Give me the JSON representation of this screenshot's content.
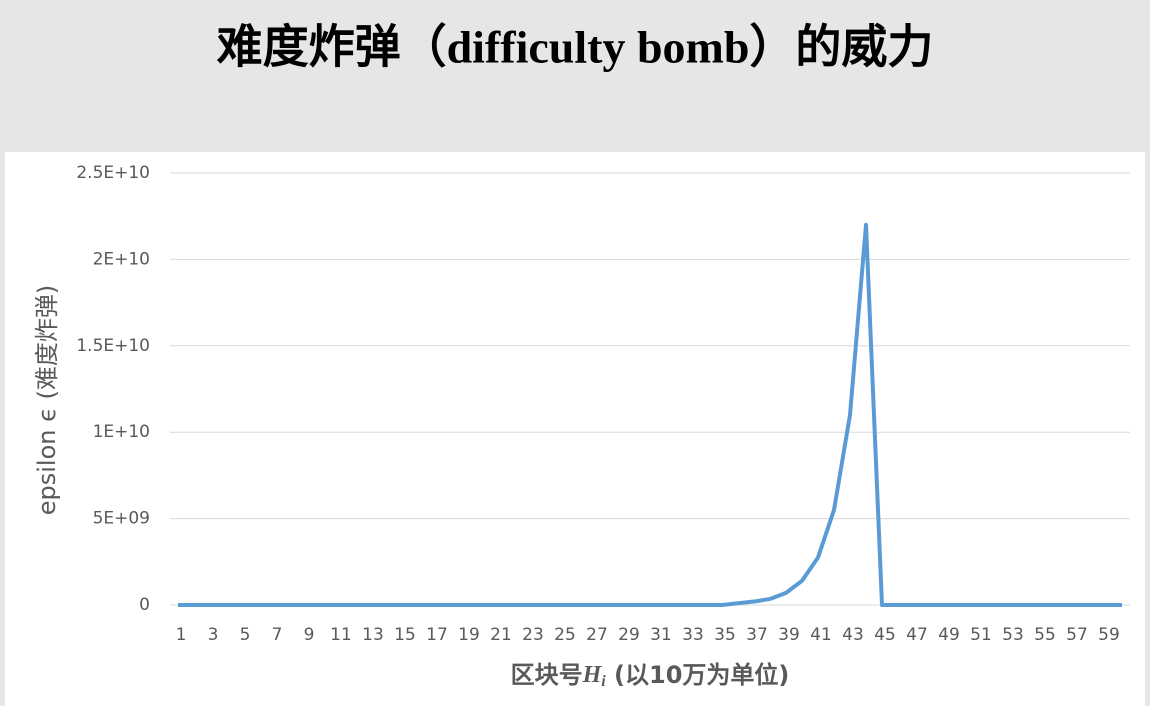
{
  "chart_data": {
    "type": "line",
    "title": "难度炸弹（difficulty bomb）的威力",
    "y_label": "epsilon ϵ (难度炸弹)",
    "x_label": {
      "prefix": "区块号",
      "var": "H",
      "sub": "i",
      "suffix": " (以10万为单位)"
    },
    "categories": [
      1,
      null,
      3,
      null,
      5,
      null,
      7,
      null,
      9,
      null,
      11,
      null,
      13,
      null,
      15,
      null,
      17,
      null,
      19,
      null,
      21,
      null,
      23,
      null,
      25,
      null,
      27,
      null,
      29,
      null,
      31,
      null,
      33,
      null,
      35,
      null,
      37,
      null,
      39,
      null,
      41,
      null,
      43,
      null,
      45,
      null,
      47,
      null,
      49,
      null,
      51,
      null,
      53,
      null,
      55,
      null,
      57,
      null,
      59,
      null
    ],
    "series": [
      {
        "name": "epsilon",
        "color": "#5b9bd5",
        "values": [
          0,
          0,
          0,
          0,
          0,
          0,
          0,
          0,
          0,
          0,
          0,
          0,
          0,
          0,
          0,
          0,
          0,
          0,
          0,
          0,
          0,
          0,
          0,
          0,
          0,
          0,
          0,
          0,
          0,
          0,
          0,
          0,
          0,
          0,
          0,
          100000000,
          200000000,
          350000000,
          700000000,
          1400000000,
          2750000000,
          5500000000,
          11000000000,
          22000000000,
          0,
          0,
          0,
          0,
          0,
          0,
          0,
          0,
          0,
          0,
          0,
          0,
          0,
          0,
          0,
          0
        ]
      }
    ],
    "ylim": [
      0,
      25000000000
    ],
    "yticks": [
      0,
      {
        "value": 5000000000,
        "label": "5E+09"
      },
      {
        "value": 10000000000,
        "label": "1E+10"
      },
      {
        "value": 15000000000,
        "label": "1.5E+10"
      },
      {
        "value": 20000000000,
        "label": "2E+10"
      },
      {
        "value": 25000000000,
        "label": "2.5E+10"
      }
    ],
    "grid": true
  }
}
